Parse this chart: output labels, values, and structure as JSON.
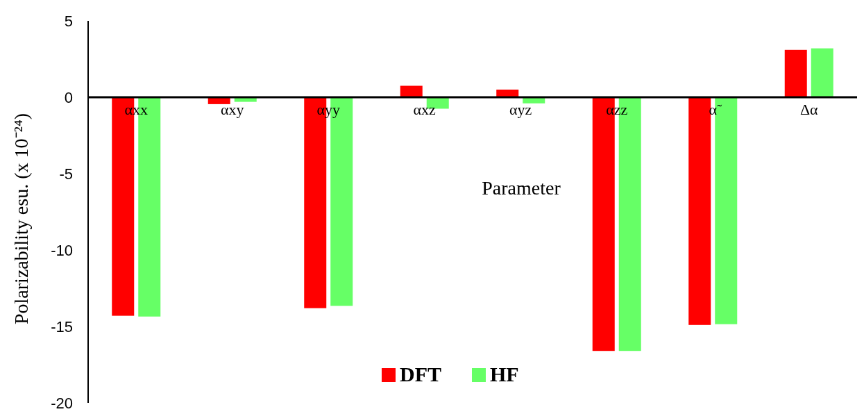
{
  "chart_data": {
    "type": "bar",
    "xlabel": "Parameter",
    "ylabel": "Polarizability esu. (x 10⁻²⁴)",
    "categories": [
      "αxx",
      "αxy",
      "αyy",
      "αxz",
      "αyz",
      "αzz",
      "α̃",
      "Δα"
    ],
    "series": [
      {
        "name": "DFT",
        "color": "#ff0000",
        "values": [
          -14.3,
          -0.45,
          -13.8,
          0.75,
          0.5,
          -16.6,
          -14.9,
          3.1
        ]
      },
      {
        "name": "HF",
        "color": "#66ff66",
        "values": [
          -14.35,
          -0.3,
          -13.65,
          -0.75,
          -0.4,
          -16.6,
          -14.85,
          3.2
        ]
      }
    ],
    "ylim": [
      -20,
      5
    ],
    "yticks": [
      -20,
      -15,
      -10,
      -5,
      0,
      5
    ],
    "grid": false,
    "legend": "bottom"
  }
}
